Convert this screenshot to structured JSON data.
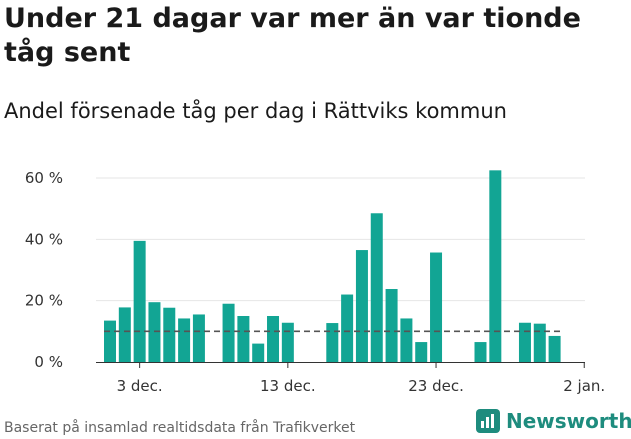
{
  "header": {
    "title": "Under 21 dagar var mer än var tionde tåg sent",
    "subtitle": "Andel försenade tåg per dag i Rättviks kommun"
  },
  "footer": {
    "source": "Baserat på insamlad realtidsdata från Trafikverket",
    "brand": "Newsworthy",
    "brand_icon": "bar-chart-logo-icon"
  },
  "colors": {
    "bar": "#12a594",
    "reference": "#555555",
    "grid": "#e6e6e6",
    "axis": "#333333",
    "brand": "#1e8c7e"
  },
  "chart_data": {
    "type": "bar",
    "title": "Under 21 dagar var mer än var tionde tåg sent",
    "subtitle": "Andel försenade tåg per dag i Rättviks kommun",
    "xlabel": "",
    "ylabel": "",
    "ylim": [
      0,
      60
    ],
    "yticks": [
      0,
      20,
      40,
      60
    ],
    "ytick_labels": [
      "0 %",
      "20 %",
      "40 %",
      "60 %"
    ],
    "x_dates": [
      "2019-12-01",
      "2019-12-02",
      "2019-12-03",
      "2019-12-04",
      "2019-12-05",
      "2019-12-06",
      "2019-12-07",
      "2019-12-08",
      "2019-12-09",
      "2019-12-10",
      "2019-12-11",
      "2019-12-12",
      "2019-12-13",
      "2019-12-14",
      "2019-12-15",
      "2019-12-16",
      "2019-12-17",
      "2019-12-18",
      "2019-12-19",
      "2019-12-20",
      "2019-12-21",
      "2019-12-22",
      "2019-12-23",
      "2019-12-24",
      "2019-12-25",
      "2019-12-26",
      "2019-12-27",
      "2019-12-28",
      "2019-12-29",
      "2019-12-30",
      "2019-12-31"
    ],
    "values": [
      13.5,
      17.8,
      39.5,
      19.5,
      17.7,
      14.2,
      15.5,
      null,
      19.0,
      15.0,
      6.0,
      15.0,
      12.8,
      null,
      null,
      12.7,
      22.0,
      36.5,
      48.5,
      23.8,
      14.2,
      6.5,
      35.7,
      null,
      null,
      6.5,
      62.5,
      null,
      12.8,
      12.5,
      8.5
    ],
    "xticks": [
      "2019-12-03",
      "2019-12-13",
      "2019-12-23",
      "2020-01-02"
    ],
    "xtick_labels": [
      "3 dec.",
      "13 dec.",
      "23 dec.",
      "2 jan."
    ],
    "reference_line": 10,
    "grid": true,
    "legend": "none"
  }
}
